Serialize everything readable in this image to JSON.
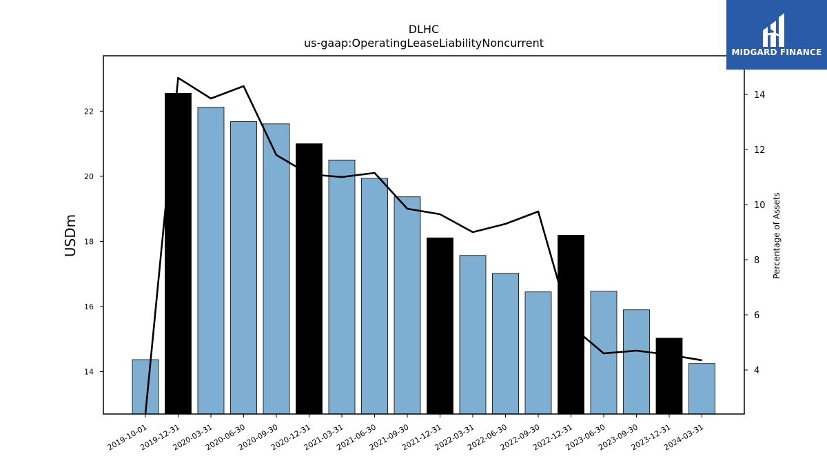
{
  "logo": {
    "text": "MIDGARD FINANCE",
    "icon": "midgard-logo-icon",
    "background": "#2a5ba8"
  },
  "chart_data": {
    "type": "bar",
    "title": "DLHC",
    "subtitle": "us-gaap:OperatingLeaseLiabilityNoncurrent",
    "ylabel": "USDm",
    "y2label": "Percentage of Assets",
    "categories": [
      "2019-10-01",
      "2019-12-31",
      "2020-03-31",
      "2020-06-30",
      "2020-09-30",
      "2020-12-31",
      "2021-03-31",
      "2021-06-30",
      "2021-09-30",
      "2021-12-31",
      "2022-03-31",
      "2022-06-30",
      "2022-09-30",
      "2022-12-31",
      "2023-06-30",
      "2023-09-30",
      "2023-12-31",
      "2024-03-31"
    ],
    "series": [
      {
        "type": "bar",
        "axis": "left",
        "values": [
          14.37,
          22.55,
          22.12,
          21.68,
          21.61,
          21.0,
          20.5,
          19.94,
          19.37,
          18.11,
          17.57,
          17.02,
          16.45,
          18.19,
          16.47,
          15.9,
          15.03,
          14.25
        ],
        "colors": [
          "#7eafd3",
          "#000000",
          "#7eafd3",
          "#7eafd3",
          "#7eafd3",
          "#000000",
          "#7eafd3",
          "#7eafd3",
          "#7eafd3",
          "#000000",
          "#7eafd3",
          "#7eafd3",
          "#7eafd3",
          "#000000",
          "#7eafd3",
          "#7eafd3",
          "#000000",
          "#7eafd3"
        ]
      },
      {
        "type": "line",
        "axis": "right",
        "values": [
          2.4,
          14.6,
          13.85,
          14.3,
          11.8,
          11.1,
          11.0,
          11.15,
          9.85,
          9.65,
          9.0,
          9.3,
          9.75,
          5.6,
          4.6,
          4.7,
          4.55,
          4.35
        ],
        "color": "#000000"
      }
    ],
    "ylim": [
      12.7,
      23.7
    ],
    "yticks": [
      14,
      16,
      18,
      20,
      22
    ],
    "y2lim": [
      2.4,
      15.4
    ],
    "y2ticks": [
      4,
      6,
      8,
      10,
      12,
      14
    ],
    "bar_color": "#7eafd3",
    "highlight_color": "#000000",
    "grid": false
  }
}
